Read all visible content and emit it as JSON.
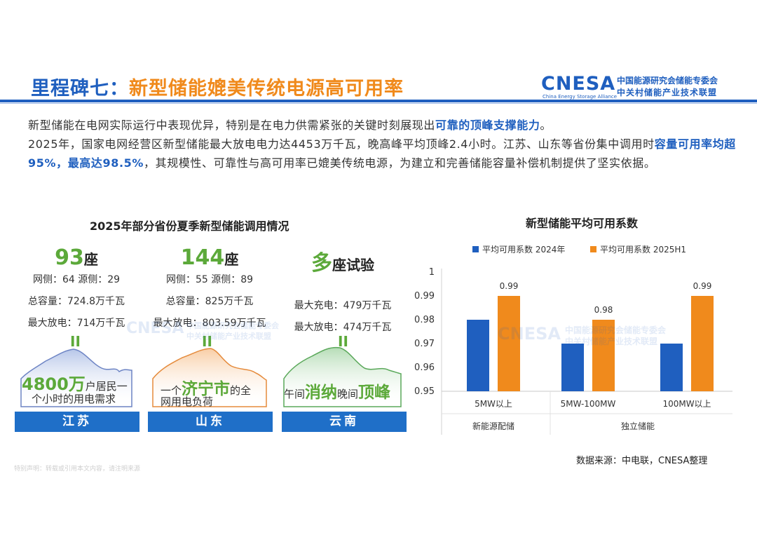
{
  "header": {
    "title_prefix": "里程碑七：",
    "title_main": "新型储能媲美传统电源高可用率",
    "logo_text": "CNESA",
    "logo_sub": "China Energy Storage Alliance",
    "logo_org1": "中国能源研究会储能专委会",
    "logo_org2": "中关村储能产业技术联盟"
  },
  "intro": {
    "p1_a": "新型储能在电网实际运行中表现优异，特别是在电力供需紧张的关键时刻展现出",
    "p1_hl": "可靠的顶峰支撑能力",
    "p1_b": "。",
    "p2_a": "2025年，国家电网经营区新型储能最大放电电力达4453万千瓦，晚高峰平均顶峰2.4小时。江苏、山东等省份集中调用时",
    "p2_hl": "容量可用率均超95%，最高达98.5%",
    "p2_b": "，其规模性、可靠性与高可用率已媲美传统电源，为建立和完善储能容量补偿机制提供了坚实依据。"
  },
  "left_panel": {
    "title": "2025年部分省份夏季新型储能调用情况",
    "provinces": [
      {
        "big": "93",
        "unit": "座",
        "line1": "网侧：64   源侧：29",
        "line2": "总容量：724.8万千瓦",
        "line3": "最大放电：714万千瓦",
        "band": "江苏",
        "cap_big": "4800万",
        "cap_a": "户居民一",
        "cap_b": "个小时的用电需求"
      },
      {
        "big": "144",
        "unit": "座",
        "line1": "网侧：55   源侧：89",
        "line2": "总容量：825万千瓦",
        "line3": "最大放电：803.59万千瓦",
        "band": "山东",
        "cap_pre": "一个",
        "cap_big": "济宁市",
        "cap_a": "的全",
        "cap_b": "网用电负荷"
      },
      {
        "big": "多",
        "unit": "座试验",
        "line1": "",
        "line2": "最大充电：479万千瓦",
        "line3": "最大放电：474万千瓦",
        "band": "云南",
        "cap_pre": "午间",
        "cap_big": "消纳",
        "cap_mid": "晚间",
        "cap_big2": "顶峰"
      }
    ],
    "eq_symbol": "II"
  },
  "chart_data": {
    "type": "bar",
    "title": "新型储能平均可用系数",
    "categories": [
      "5MW以上",
      "5MW-100MW",
      "100MW以上"
    ],
    "groups": [
      {
        "label": "新能源配储",
        "categories": [
          "5MW以上"
        ]
      },
      {
        "label": "独立储能",
        "categories": [
          "5MW-100MW",
          "100MW以上"
        ]
      }
    ],
    "series": [
      {
        "name": "平均可用系数 2024年",
        "values": [
          0.98,
          0.97,
          0.97
        ],
        "color": "#1f5fbf"
      },
      {
        "name": "平均可用系数 2025H1",
        "values": [
          0.99,
          0.98,
          0.99
        ],
        "color": "#f08a1c",
        "labels": [
          "0.99",
          "0.98",
          "0.99"
        ]
      }
    ],
    "ylim": [
      0.95,
      1.0
    ],
    "yticks": [
      "0.95",
      "0.96",
      "0.97",
      "0.98",
      "0.99",
      "1"
    ],
    "legend": "top"
  },
  "footer": {
    "source": "数据来源：中电联，CNESA整理",
    "notice": "特别声明：转载或引用本文内容，请注明来源"
  },
  "watermark": {
    "main": "CNESA",
    "org1": "中国能源研究会储能专委会",
    "org2": "中关村储能产业技术联盟"
  }
}
